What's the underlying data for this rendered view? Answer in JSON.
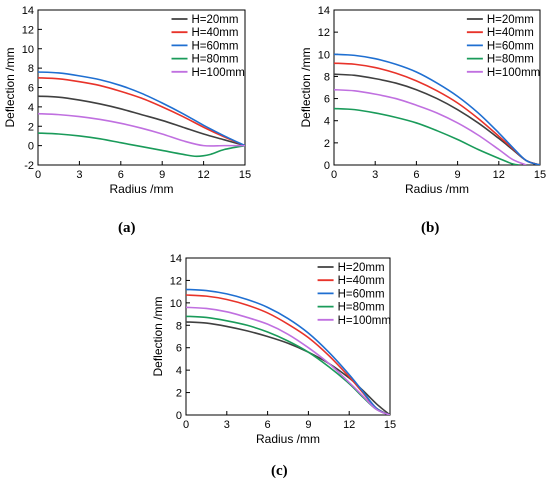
{
  "chart_data": [
    {
      "type": "line",
      "panel_label": "(a)",
      "xlabel": "Radius /mm",
      "ylabel": "Deflection /mm",
      "xlim": [
        0,
        15
      ],
      "ylim": [
        -2,
        14
      ],
      "xticks": [
        0,
        3,
        6,
        9,
        12,
        15
      ],
      "yticks": [
        -2,
        0,
        2,
        4,
        6,
        8,
        10,
        12,
        14
      ],
      "grid": false,
      "legend_position": "top-right",
      "series": [
        {
          "name": "H=20mm",
          "color": "#404040",
          "x": [
            0,
            1.5,
            3,
            4.5,
            6,
            7.5,
            9,
            10.5,
            12,
            13.5,
            15
          ],
          "y": [
            5.1,
            5.0,
            4.7,
            4.3,
            3.8,
            3.2,
            2.6,
            1.9,
            1.2,
            0.6,
            0.0
          ]
        },
        {
          "name": "H=40mm",
          "color": "#e8332a",
          "x": [
            0,
            1.5,
            3,
            4.5,
            6,
            7.5,
            9,
            10.5,
            12,
            13.5,
            15
          ],
          "y": [
            7.0,
            6.9,
            6.6,
            6.2,
            5.6,
            4.9,
            4.0,
            3.0,
            1.9,
            0.9,
            0.0
          ]
        },
        {
          "name": "H=60mm",
          "color": "#1f6fd1",
          "x": [
            0,
            1.5,
            3,
            4.5,
            6,
            7.5,
            9,
            10.5,
            12,
            13.5,
            15
          ],
          "y": [
            7.6,
            7.5,
            7.2,
            6.8,
            6.2,
            5.4,
            4.4,
            3.3,
            2.1,
            1.0,
            0.0
          ]
        },
        {
          "name": "H=80mm",
          "color": "#1a9b5a",
          "x": [
            0,
            1.5,
            3,
            4.5,
            6,
            7.5,
            9,
            10.5,
            11.5,
            12.5,
            13.5,
            15
          ],
          "y": [
            1.3,
            1.2,
            1.0,
            0.7,
            0.3,
            -0.1,
            -0.5,
            -0.9,
            -1.1,
            -0.9,
            -0.4,
            0.0
          ]
        },
        {
          "name": "H=100mm",
          "color": "#c070e0",
          "x": [
            0,
            1.5,
            3,
            4.5,
            6,
            7.5,
            9,
            10.5,
            12,
            13.5,
            15
          ],
          "y": [
            3.3,
            3.2,
            3.0,
            2.7,
            2.3,
            1.8,
            1.2,
            0.5,
            0.0,
            0.0,
            0.0
          ]
        }
      ]
    },
    {
      "type": "line",
      "panel_label": "(b)",
      "xlabel": "Radius /mm",
      "ylabel": "Deflection /mm",
      "xlim": [
        0,
        15
      ],
      "ylim": [
        0,
        14
      ],
      "xticks": [
        0,
        3,
        6,
        9,
        12,
        15
      ],
      "yticks": [
        0,
        2,
        4,
        6,
        8,
        10,
        12,
        14
      ],
      "grid": false,
      "legend_position": "top-right",
      "series": [
        {
          "name": "H=20mm",
          "color": "#404040",
          "x": [
            0,
            1.5,
            3,
            4.5,
            6,
            7.5,
            9,
            10.5,
            12,
            13,
            14,
            15
          ],
          "y": [
            8.2,
            8.1,
            7.8,
            7.4,
            6.8,
            6.0,
            5.0,
            3.8,
            2.4,
            1.4,
            0.4,
            0.0
          ]
        },
        {
          "name": "H=40mm",
          "color": "#e8332a",
          "x": [
            0,
            1.5,
            3,
            4.5,
            6,
            7.5,
            9,
            10.5,
            12,
            13,
            14,
            15
          ],
          "y": [
            9.2,
            9.1,
            8.8,
            8.3,
            7.6,
            6.7,
            5.6,
            4.2,
            2.6,
            1.5,
            0.4,
            0.0
          ]
        },
        {
          "name": "H=60mm",
          "color": "#1f6fd1",
          "x": [
            0,
            1.5,
            3,
            4.5,
            6,
            7.5,
            9,
            10.5,
            12,
            13,
            14,
            15
          ],
          "y": [
            10.0,
            9.9,
            9.6,
            9.1,
            8.4,
            7.4,
            6.2,
            4.7,
            2.9,
            1.6,
            0.4,
            0.0
          ]
        },
        {
          "name": "H=80mm",
          "color": "#1a9b5a",
          "x": [
            0,
            1.5,
            3,
            4.5,
            6,
            7.5,
            9,
            10.5,
            12,
            13,
            13.5
          ],
          "y": [
            5.1,
            5.0,
            4.7,
            4.3,
            3.8,
            3.1,
            2.3,
            1.4,
            0.6,
            0.1,
            0.0
          ]
        },
        {
          "name": "H=100mm",
          "color": "#c070e0",
          "x": [
            0,
            1.5,
            3,
            4.5,
            6,
            7.5,
            9,
            10.5,
            12,
            13,
            14
          ],
          "y": [
            6.8,
            6.7,
            6.4,
            6.0,
            5.4,
            4.7,
            3.8,
            2.7,
            1.4,
            0.5,
            0.0
          ]
        }
      ]
    },
    {
      "type": "line",
      "panel_label": "(c)",
      "xlabel": "Radius /mm",
      "ylabel": "Deflection /mm",
      "xlim": [
        0,
        15
      ],
      "ylim": [
        0,
        14
      ],
      "xticks": [
        0,
        3,
        6,
        9,
        12,
        15
      ],
      "yticks": [
        0,
        2,
        4,
        6,
        8,
        10,
        12,
        14
      ],
      "grid": false,
      "legend_position": "top-right",
      "series": [
        {
          "name": "H=20mm",
          "color": "#404040",
          "x": [
            0,
            1.5,
            3,
            4.5,
            6,
            7.5,
            9,
            10.5,
            12,
            13,
            14,
            15
          ],
          "y": [
            8.3,
            8.2,
            7.9,
            7.5,
            7.0,
            6.4,
            5.6,
            4.6,
            3.3,
            2.2,
            1.0,
            0.0
          ]
        },
        {
          "name": "H=40mm",
          "color": "#e8332a",
          "x": [
            0,
            1.5,
            3,
            4.5,
            6,
            7.5,
            9,
            10.5,
            12,
            13,
            14,
            15
          ],
          "y": [
            10.7,
            10.6,
            10.3,
            9.8,
            9.1,
            8.1,
            6.9,
            5.3,
            3.4,
            2.0,
            0.6,
            0.0
          ]
        },
        {
          "name": "H=60mm",
          "color": "#1f6fd1",
          "x": [
            0,
            1.5,
            3,
            4.5,
            6,
            7.5,
            9,
            10.5,
            12,
            13,
            14,
            15
          ],
          "y": [
            11.2,
            11.1,
            10.8,
            10.3,
            9.6,
            8.6,
            7.3,
            5.6,
            3.6,
            2.1,
            0.6,
            0.0
          ]
        },
        {
          "name": "H=80mm",
          "color": "#1a9b5a",
          "x": [
            0,
            1.5,
            3,
            4.5,
            6,
            7.5,
            9,
            10.5,
            12,
            13,
            14,
            15
          ],
          "y": [
            8.8,
            8.7,
            8.4,
            8.0,
            7.4,
            6.6,
            5.6,
            4.3,
            2.8,
            1.6,
            0.5,
            0.0
          ]
        },
        {
          "name": "H=100mm",
          "color": "#c070e0",
          "x": [
            0,
            1.5,
            3,
            4.5,
            6,
            7.5,
            9,
            10.5,
            12,
            13,
            14,
            15
          ],
          "y": [
            9.6,
            9.5,
            9.2,
            8.7,
            8.1,
            7.2,
            6.0,
            4.6,
            2.9,
            1.7,
            0.5,
            0.0
          ]
        }
      ]
    }
  ]
}
